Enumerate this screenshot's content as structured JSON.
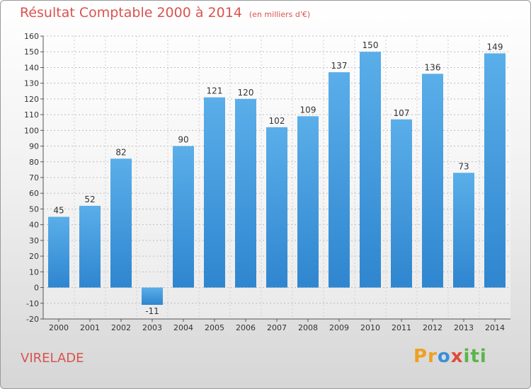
{
  "header": {
    "title": "Résultat Comptable 2000 à 2014",
    "subtitle": "(en milliers d'€)"
  },
  "commune": "VIRELADE",
  "logo": {
    "parts": [
      "Pr",
      "o",
      "x",
      "iti"
    ],
    "colors": [
      "#f0a020",
      "#3a8fd8",
      "#e04a3a",
      "#5ab54a"
    ]
  },
  "colors": {
    "bar_light": "#5aaee9",
    "bar_dark": "#2f86cf",
    "title": "#d9534f"
  },
  "chart_data": {
    "type": "bar",
    "title": "Résultat Comptable 2000 à 2014",
    "subtitle": "(en milliers d'€)",
    "categories": [
      "2000",
      "2001",
      "2002",
      "2003",
      "2004",
      "2005",
      "2006",
      "2007",
      "2008",
      "2009",
      "2010",
      "2011",
      "2012",
      "2013",
      "2014"
    ],
    "values": [
      45,
      52,
      82,
      -11,
      90,
      121,
      120,
      102,
      109,
      137,
      150,
      107,
      136,
      73,
      149
    ],
    "ylim": [
      -20,
      160
    ],
    "yticks": [
      160,
      150,
      140,
      130,
      120,
      110,
      100,
      90,
      80,
      70,
      60,
      50,
      40,
      30,
      20,
      10,
      0,
      -10,
      -20
    ],
    "grid": true,
    "legend": "none"
  }
}
